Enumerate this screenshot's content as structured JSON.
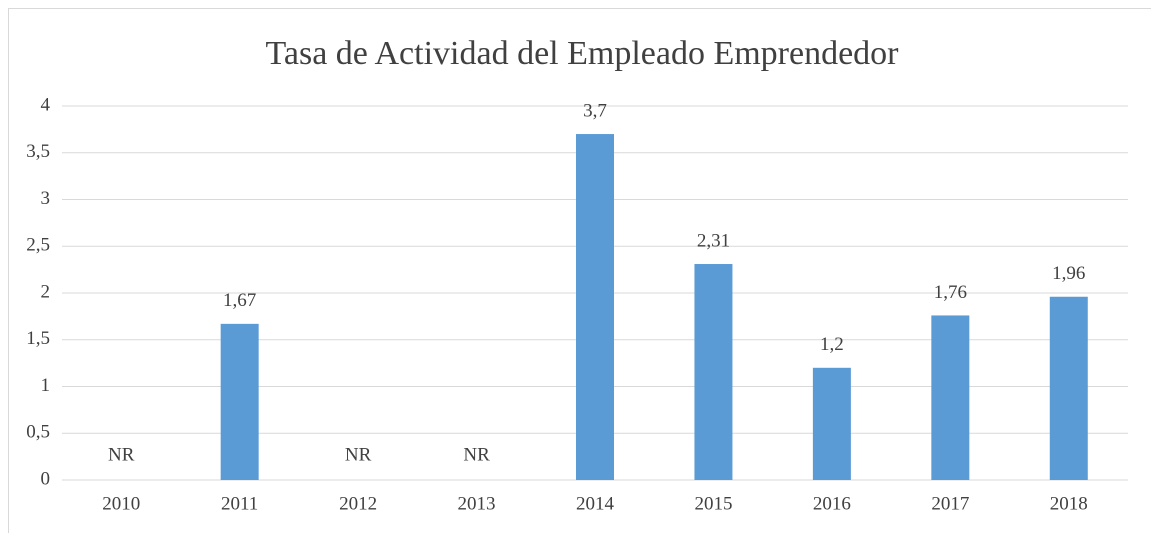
{
  "chart_data": {
    "type": "bar",
    "title": "Tasa de Actividad del Empleado Emprendedor",
    "categories": [
      "2010",
      "2011",
      "2012",
      "2013",
      "2014",
      "2015",
      "2016",
      "2017",
      "2018"
    ],
    "values": [
      null,
      1.67,
      null,
      null,
      3.7,
      2.31,
      1.2,
      1.76,
      1.96
    ],
    "value_labels": [
      "NR",
      "1,67",
      "NR",
      "NR",
      "3,7",
      "2,31",
      "1,2",
      "1,76",
      "1,96"
    ],
    "color": "#5b9bd5",
    "ylim": [
      0,
      4
    ],
    "yticks": [
      0,
      {
        "value": 0.5,
        "label": "0,5"
      },
      1,
      {
        "value": 1.5,
        "label": "1,5"
      },
      2,
      {
        "value": 2.5,
        "label": "2,5"
      },
      3,
      {
        "value": 3.5,
        "label": "3,5"
      },
      4
    ],
    "grid": true
  }
}
